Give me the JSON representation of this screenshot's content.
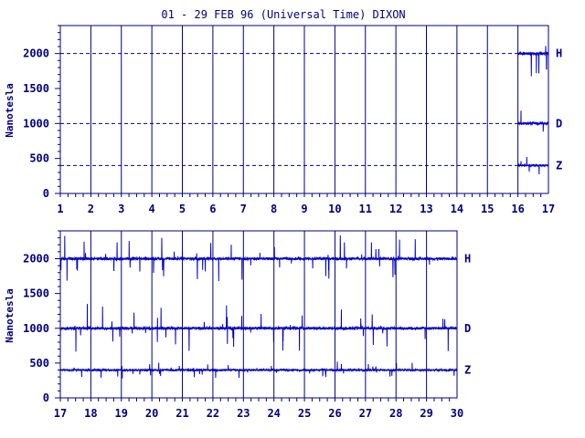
{
  "chart_data": {
    "title": "01 - 29 FEB 96 (Universal Time) DIXON",
    "colors": {
      "ink": "#000080",
      "data": "#0000c8",
      "frame": "#00007f"
    },
    "panels": [
      {
        "type": "line",
        "ylabel": "Nanotesla",
        "ylim": [
          0,
          2400
        ],
        "yticks": [
          0,
          500,
          1000,
          1500,
          2000
        ],
        "reference_lines": [
          2000,
          1000,
          400
        ],
        "xlim": [
          1,
          17
        ],
        "xticks": [
          1,
          2,
          3,
          4,
          5,
          6,
          7,
          8,
          9,
          10,
          11,
          12,
          13,
          14,
          15,
          16,
          17
        ],
        "series": [
          {
            "name": "H",
            "level": 2000,
            "start": 16.0,
            "end": 17.0
          },
          {
            "name": "D",
            "level": 1000,
            "start": 16.0,
            "end": 17.0
          },
          {
            "name": "Z",
            "level": 400,
            "start": 16.0,
            "end": 17.0
          }
        ]
      },
      {
        "type": "line",
        "ylabel": "Nanotesla",
        "ylim": [
          0,
          2400
        ],
        "yticks": [
          0,
          500,
          1000,
          1500,
          2000
        ],
        "xlim": [
          17,
          30
        ],
        "xticks": [
          17,
          18,
          19,
          20,
          21,
          22,
          23,
          24,
          25,
          26,
          27,
          28,
          29,
          30
        ],
        "series": [
          {
            "name": "H",
            "level": 2000,
            "start": 17.0,
            "end": 30.0
          },
          {
            "name": "D",
            "level": 1000,
            "start": 17.0,
            "end": 30.0
          },
          {
            "name": "Z",
            "level": 400,
            "start": 17.0,
            "end": 30.0
          }
        ]
      }
    ]
  }
}
